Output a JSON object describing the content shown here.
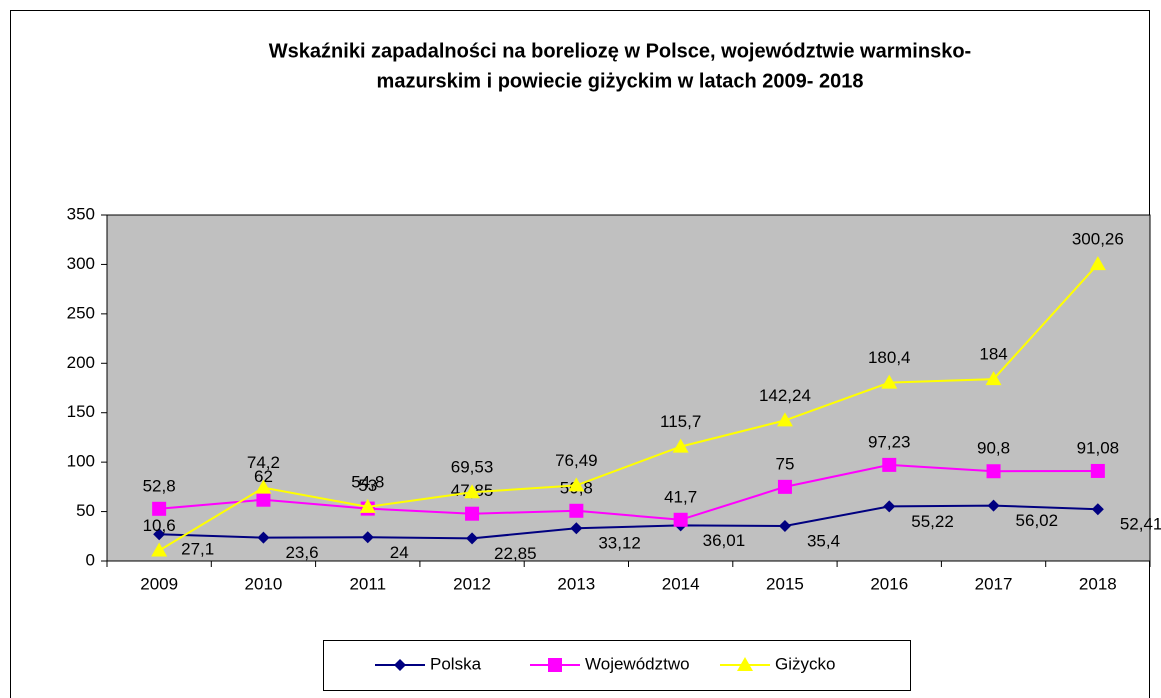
{
  "chart_data": {
    "type": "line",
    "title": [
      "Wskaźniki zapadalności na boreliozę w Polsce, województwie warminsko-",
      "mazurskim i powiecie giżyckim w latach 2009- 2018"
    ],
    "categories": [
      "2009",
      "2010",
      "2011",
      "2012",
      "2013",
      "2014",
      "2015",
      "2016",
      "2017",
      "2018"
    ],
    "series": [
      {
        "name": "Polska",
        "color": "#000080",
        "marker": "diamond",
        "values": [
          27.1,
          23.6,
          24,
          22.85,
          33.12,
          36.01,
          35.4,
          55.22,
          56.02,
          52.41
        ],
        "value_labels": [
          "27,1",
          "23,6",
          "24",
          "22,85",
          "33,12",
          "36,01",
          "35,4",
          "55,22",
          "56,02",
          "52,41"
        ]
      },
      {
        "name": "Województwo",
        "color": "#ff00ff",
        "marker": "square",
        "values": [
          52.8,
          62,
          53,
          47.85,
          50.8,
          41.7,
          75,
          97.23,
          90.8,
          91.08
        ],
        "value_labels": [
          "52,8",
          "62",
          "53",
          "47,85",
          "50,8",
          "41,7",
          "75",
          "97,23",
          "90,8",
          "91,08"
        ]
      },
      {
        "name": "Giżycko",
        "color": "#ffff00",
        "marker": "triangle",
        "values": [
          10.6,
          74.2,
          54.8,
          69.53,
          76.49,
          115.7,
          142.24,
          180.4,
          184,
          300.26
        ],
        "value_labels": [
          "10,6",
          "74,2",
          "54,8",
          "69,53",
          "76,49",
          "115,7",
          "142,24",
          "180,4",
          "184",
          "300,26"
        ]
      }
    ],
    "ylim": [
      0,
      350
    ],
    "yticks": [
      0,
      50,
      100,
      150,
      200,
      250,
      300,
      350
    ],
    "plot_background": "#c0c0c0",
    "legend": "bottom"
  }
}
